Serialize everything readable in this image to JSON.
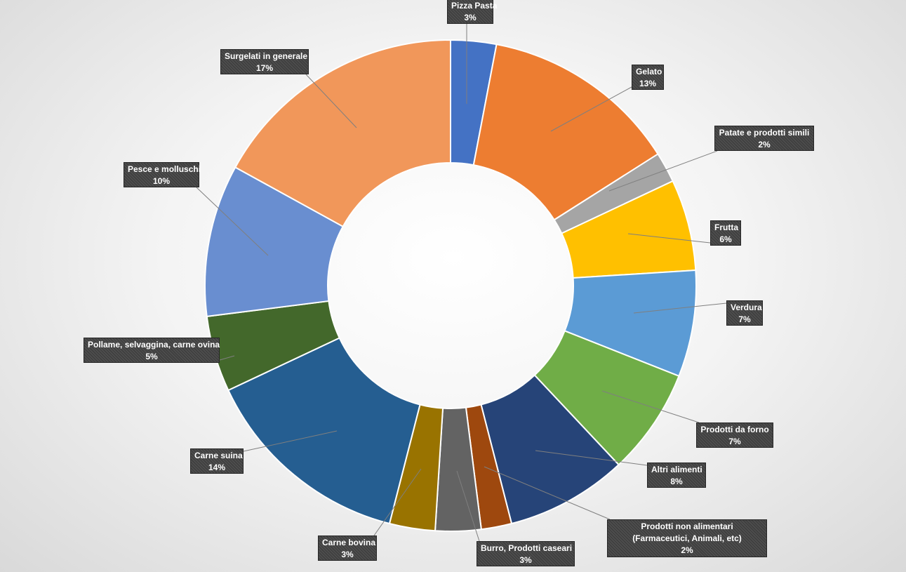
{
  "chart_data": {
    "type": "pie",
    "variant": "doughnut",
    "title": "",
    "slices": [
      {
        "label": "Pizza Pasta",
        "value": 3,
        "pct": "3%",
        "color": "#4472C4"
      },
      {
        "label": "Gelato",
        "value": 13,
        "pct": "13%",
        "color": "#ED7D31"
      },
      {
        "label": "Patate e prodotti simili",
        "value": 2,
        "pct": "2%",
        "color": "#A5A5A5"
      },
      {
        "label": "Frutta",
        "value": 6,
        "pct": "6%",
        "color": "#FFC000"
      },
      {
        "label": "Verdura",
        "value": 7,
        "pct": "7%",
        "color": "#5B9BD5"
      },
      {
        "label": "Prodotti da forno",
        "value": 7,
        "pct": "7%",
        "color": "#70AD47"
      },
      {
        "label": "Altri alimenti",
        "value": 8,
        "pct": "8%",
        "color": "#264478"
      },
      {
        "label": "Prodotti non alimentari (Farmaceutici, Animali, etc)",
        "value": 2,
        "pct": "2%",
        "color": "#9E480E"
      },
      {
        "label": "Burro, Prodotti caseari",
        "value": 3,
        "pct": "3%",
        "color": "#636363"
      },
      {
        "label": "Carne bovina",
        "value": 3,
        "pct": "3%",
        "color": "#997300"
      },
      {
        "label": "Carne suina",
        "value": 14,
        "pct": "14%",
        "color": "#255E91"
      },
      {
        "label": "Pollame, selvaggina, carne ovina",
        "value": 5,
        "pct": "5%",
        "color": "#43682B"
      },
      {
        "label": "Pesce e molluschi",
        "value": 10,
        "pct": "10%",
        "color": "#698ED0"
      },
      {
        "label": "Surgelati in generale",
        "value": 17,
        "pct": "17%",
        "color": "#F1975A"
      }
    ],
    "legend": "none",
    "data_labels": "callouts"
  }
}
